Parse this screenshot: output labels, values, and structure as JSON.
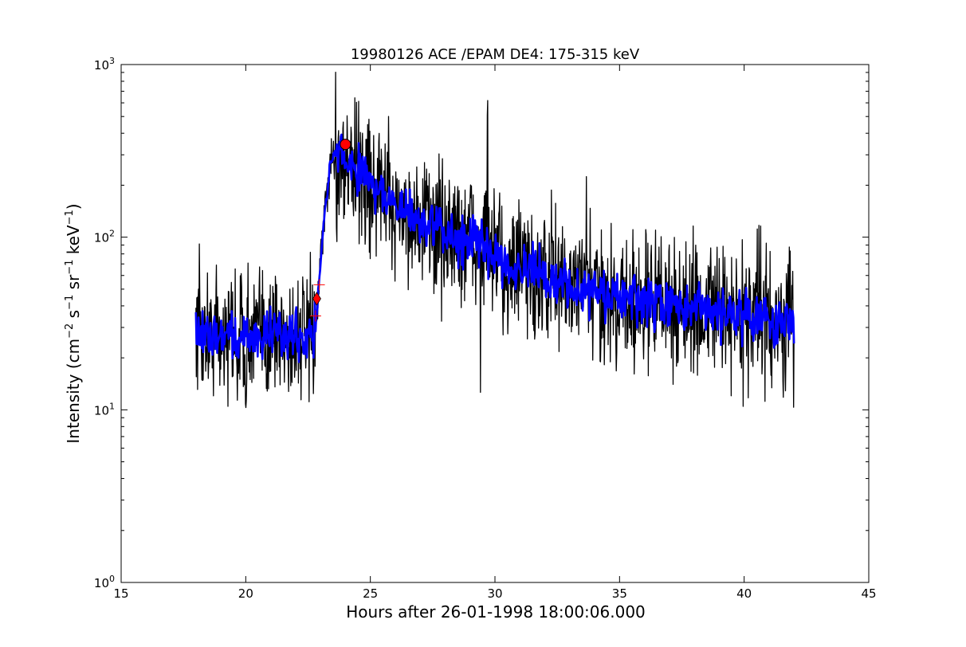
{
  "chart_data": {
    "type": "line",
    "title": "19980126 ACE /EPAM DE4: 175-315 keV",
    "xlabel": "Hours after 26-01-1998 18:00:06.000",
    "ylabel": "Intensity (cm",
    "ylabel_parts": [
      "Intensity (cm",
      "−2",
      " s",
      "−1",
      " sr",
      "−1",
      " keV",
      "−1",
      ")"
    ],
    "xlim": [
      15,
      45
    ],
    "ylim": [
      1,
      1000
    ],
    "yscale": "log",
    "grid": false,
    "x_ticks": [
      "15",
      "20",
      "25",
      "30",
      "35",
      "40",
      "45"
    ],
    "y_ticks": [
      {
        "base": "10",
        "exp": "0"
      },
      {
        "base": "10",
        "exp": "1"
      },
      {
        "base": "10",
        "exp": "2"
      },
      {
        "base": "10",
        "exp": "3"
      }
    ],
    "series": [
      {
        "color": "#000000",
        "style": "raw",
        "x": [
          18.0,
          18.5,
          19.0,
          19.5,
          20.0,
          20.5,
          21.0,
          21.5,
          22.0,
          22.5,
          22.8,
          22.9,
          23.0,
          23.2,
          23.4,
          23.6,
          23.8,
          24.0,
          24.5,
          25.0,
          25.5,
          26.0,
          26.5,
          27.0,
          27.5,
          28.0,
          28.5,
          29.0,
          29.5,
          30.0,
          31.0,
          32.0,
          33.0,
          34.0,
          35.0,
          36.0,
          37.0,
          38.0,
          39.0,
          40.0,
          41.0,
          42.0
        ],
        "values": [
          28,
          27,
          28,
          27,
          26,
          27,
          28,
          27,
          28,
          27,
          30,
          45,
          75,
          150,
          270,
          300,
          305,
          280,
          250,
          220,
          175,
          150,
          135,
          125,
          115,
          105,
          100,
          95,
          88,
          80,
          66,
          58,
          52,
          47,
          44,
          42,
          40,
          38,
          37,
          36,
          34,
          30
        ]
      },
      {
        "color": "#0000ff",
        "style": "smoothed",
        "x": [
          18.0,
          18.5,
          19.0,
          19.5,
          20.0,
          20.5,
          21.0,
          21.5,
          22.0,
          22.5,
          22.8,
          22.9,
          23.0,
          23.2,
          23.4,
          23.6,
          23.8,
          24.0,
          24.5,
          25.0,
          25.5,
          26.0,
          26.5,
          27.0,
          27.5,
          28.0,
          28.5,
          29.0,
          29.5,
          30.0,
          31.0,
          32.0,
          33.0,
          34.0,
          35.0,
          36.0,
          37.0,
          38.0,
          39.0,
          40.0,
          41.0,
          42.0
        ],
        "values": [
          28,
          27,
          28,
          27,
          26,
          27,
          28,
          27,
          28,
          27,
          30,
          45,
          75,
          150,
          270,
          300,
          305,
          280,
          250,
          220,
          175,
          150,
          135,
          125,
          115,
          105,
          100,
          95,
          88,
          80,
          66,
          58,
          52,
          47,
          44,
          42,
          40,
          38,
          37,
          36,
          34,
          30
        ]
      }
    ],
    "markers": [
      {
        "shape": "circle",
        "x": 24.0,
        "y": 345,
        "color": "#ff0000"
      },
      {
        "shape": "diamond",
        "x": 22.85,
        "y": 44,
        "color": "#ff0000"
      },
      {
        "shape": "plus",
        "x": 22.95,
        "y": 53,
        "color": "#ff0000"
      },
      {
        "shape": "plus",
        "x": 22.8,
        "y": 35,
        "color": "#ff0000"
      }
    ]
  }
}
